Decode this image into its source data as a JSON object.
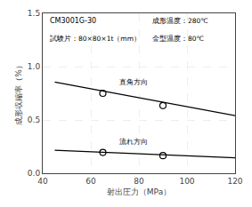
{
  "chart_data": {
    "type": "line",
    "xlabel": "射出圧力（MPa）",
    "ylabel": "成形収縮率（%）",
    "annotations": [
      "CM3001G-30",
      "試験片：80×80×1t（mm）",
      "成形温度：280℃",
      "金型温度：80℃",
      "直角方向",
      "流れ方向"
    ],
    "series": [
      {
        "type": "line",
        "color": "#000000",
        "x": [
          45,
          120
        ],
        "values": [
          0.855,
          0.54
        ]
      },
      {
        "type": "scatter",
        "marker": "open circle",
        "color": "#000000",
        "x": [
          65,
          90
        ],
        "values": [
          0.75,
          0.635
        ]
      },
      {
        "type": "line",
        "color": "#000000",
        "x": [
          45,
          120
        ],
        "values": [
          0.215,
          0.145
        ]
      },
      {
        "type": "scatter",
        "marker": "open circle",
        "color": "#000000",
        "x": [
          65,
          90
        ],
        "values": [
          0.195,
          0.165
        ]
      }
    ],
    "xlim": [
      40,
      120
    ],
    "ylim": [
      0,
      1.5
    ],
    "xticks": [
      40,
      60,
      80,
      100,
      120
    ],
    "yticks": [
      {
        "value": 0,
        "label": "0.0"
      },
      0.5,
      {
        "value": 1.0,
        "label": "1.0"
      },
      1.5
    ],
    "grid": true
  }
}
